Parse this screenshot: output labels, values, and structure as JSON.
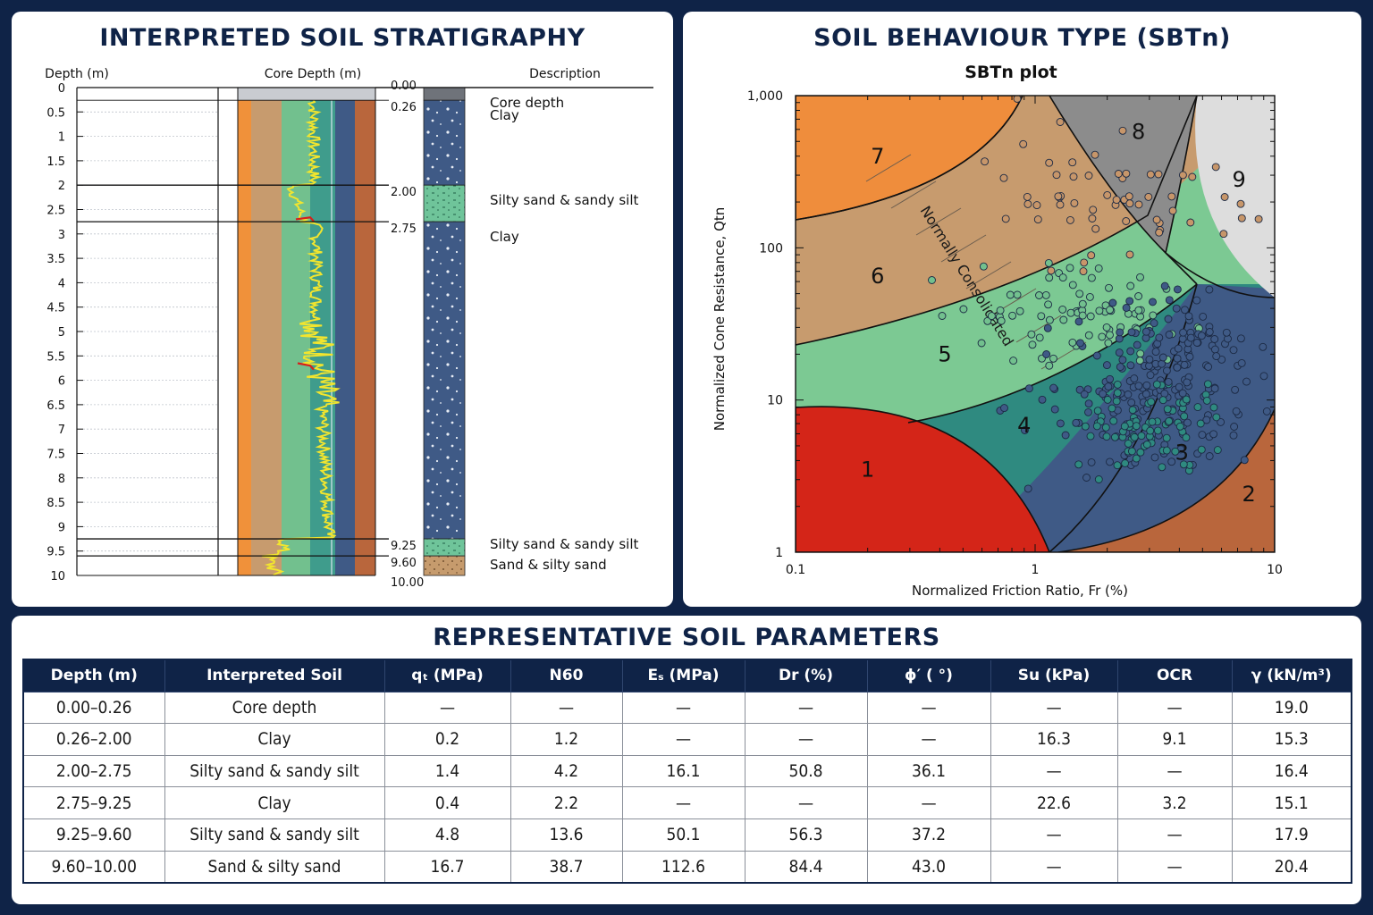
{
  "strat": {
    "title": "INTERPRETED SOIL STRATIGRAPHY",
    "header_depth": "Depth (m)",
    "header_core": "Core Depth (m)",
    "header_desc": "Description",
    "depth_ticks": [
      "0",
      "0.5",
      "1",
      "1.5",
      "2",
      "2.5",
      "3",
      "3.5",
      "4",
      "4.5",
      "5",
      "5.5",
      "6",
      "6.5",
      "7",
      "7.5",
      "8",
      "8.5",
      "9",
      "9.5",
      "10"
    ],
    "core_depths": [
      "0.00",
      "0.26",
      "2.00",
      "2.75",
      "9.25",
      "9.60",
      "10.00"
    ],
    "layers": [
      {
        "top": 0.0,
        "bottom": 0.26,
        "desc": "Core depth",
        "pattern": "grey"
      },
      {
        "top": 0.26,
        "bottom": 2.0,
        "desc": "Clay",
        "pattern": "clay"
      },
      {
        "top": 2.0,
        "bottom": 2.75,
        "desc": "Silty sand & sandy silt",
        "pattern": "silt"
      },
      {
        "top": 2.75,
        "bottom": 9.25,
        "desc": "Clay",
        "pattern": "clay"
      },
      {
        "top": 9.25,
        "bottom": 9.6,
        "desc": "Silty sand & sandy silt",
        "pattern": "silt"
      },
      {
        "top": 9.6,
        "bottom": 10.0,
        "desc": "Sand & silty sand",
        "pattern": "sand"
      }
    ],
    "zone_colors": [
      "#f0913a",
      "#c79b6e",
      "#72c08e",
      "#3f9c8c",
      "#3f5a86",
      "#b9663c"
    ],
    "trace_color": "#f2e52e",
    "trace_highlight": "#d6201b"
  },
  "sbt": {
    "title": "SOIL BEHAVIOUR TYPE (SBTn)",
    "plot_title": "SBTn plot",
    "chart_data": {
      "type": "scatter",
      "title": "SBTn plot",
      "xlabel": "Normalized Friction Ratio, Fr (%)",
      "ylabel": "Normalized Cone Resistance, Qtn",
      "xscale": "log",
      "yscale": "log",
      "xlim": [
        0.1,
        10
      ],
      "ylim": [
        1,
        1000
      ],
      "x_ticks": [
        "0.1",
        "1",
        "10"
      ],
      "y_ticks": [
        "1",
        "10",
        "100",
        "1,000"
      ],
      "zones": [
        {
          "id": "1",
          "color": "#d42518",
          "x": 0.2,
          "y": 3.5
        },
        {
          "id": "2",
          "color": "#b9663c",
          "x": 7.8,
          "y": 2.4
        },
        {
          "id": "3",
          "color": "#3f5a86",
          "x": 4.1,
          "y": 4.5
        },
        {
          "id": "4",
          "color": "#2f8a80",
          "x": 0.9,
          "y": 6.8
        },
        {
          "id": "5",
          "color": "#7cc993",
          "x": 0.42,
          "y": 20
        },
        {
          "id": "6",
          "color": "#c79b6e",
          "x": 0.22,
          "y": 65
        },
        {
          "id": "7",
          "color": "#ef8d3c",
          "x": 0.22,
          "y": 400
        },
        {
          "id": "8",
          "color": "#8c8c8c",
          "x": 2.7,
          "y": 580
        },
        {
          "id": "9",
          "color": "#dddddd",
          "x": 7.1,
          "y": 280
        }
      ],
      "annotation": "Normally Consolidated",
      "marker_colors": [
        "#c7966a",
        "#72c08e",
        "#3f5a86",
        "#2f8a80"
      ]
    }
  },
  "params": {
    "title": "REPRESENTATIVE SOIL PARAMETERS",
    "headers": [
      "Depth (m)",
      "Interpreted Soil",
      "qₜ (MPa)",
      "N60",
      "Eₛ (MPa)",
      "Dr (%)",
      "ϕ′ ( °)",
      "Su (kPa)",
      "OCR",
      "γ (kN/m³)"
    ],
    "rows": [
      [
        "0.00–0.26",
        "Core depth",
        "—",
        "—",
        "—",
        "—",
        "—",
        "—",
        "—",
        "19.0"
      ],
      [
        "0.26–2.00",
        "Clay",
        "0.2",
        "1.2",
        "—",
        "—",
        "—",
        "16.3",
        "9.1",
        "15.3"
      ],
      [
        "2.00–2.75",
        "Silty sand & sandy silt",
        "1.4",
        "4.2",
        "16.1",
        "50.8",
        "36.1",
        "—",
        "—",
        "16.4"
      ],
      [
        "2.75–9.25",
        "Clay",
        "0.4",
        "2.2",
        "—",
        "—",
        "—",
        "22.6",
        "3.2",
        "15.1"
      ],
      [
        "9.25–9.60",
        "Silty sand & sandy silt",
        "4.8",
        "13.6",
        "50.1",
        "56.3",
        "37.2",
        "—",
        "—",
        "17.9"
      ],
      [
        "9.60–10.00",
        "Sand & silty sand",
        "16.7",
        "38.7",
        "112.6",
        "84.4",
        "43.0",
        "—",
        "—",
        "20.4"
      ]
    ]
  }
}
